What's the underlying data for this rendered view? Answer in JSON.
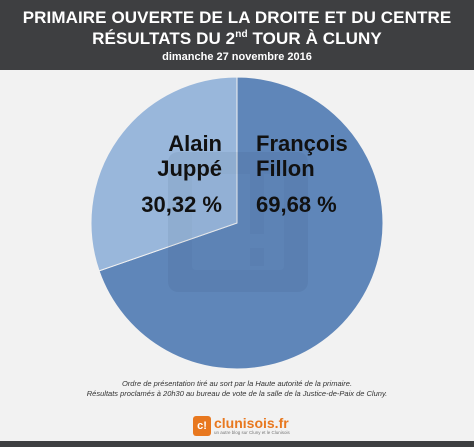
{
  "header": {
    "title_line1": "PRIMAIRE OUVERTE DE LA DROITE ET DU CENTRE",
    "title_line2_prefix": "RÉSULTATS DU 2",
    "title_line2_sup": "nd",
    "title_line2_suffix": " TOUR À CLUNY",
    "subtitle": "dimanche 27 novembre 2016"
  },
  "chart_data": {
    "type": "pie",
    "title": "PRIMAIRE OUVERTE DE LA DROITE ET DU CENTRE RÉSULTATS DU 2nd TOUR À CLUNY",
    "subtitle": "dimanche 27 novembre 2016",
    "start_angle_deg": 0,
    "direction": "clockwise",
    "slices": [
      {
        "first_name": "François",
        "last_name": "Fillon",
        "value": 69.68,
        "label": "69,68 %",
        "color": "#5f86b9"
      },
      {
        "first_name": "Alain",
        "last_name": "Juppé",
        "value": 30.32,
        "label": "30,32 %",
        "color": "#99b7db"
      }
    ]
  },
  "footnote": {
    "line1": "Ordre de présentation tiré au sort par la Haute autorité de la primaire.",
    "line2": "Résultats proclamés à 20h30 au bureau de vote de la salle de la Justice-de-Paix de Cluny."
  },
  "brand": {
    "logo_text": "c!",
    "name": "clunisois.fr",
    "tagline": "un autre blog sur Cluny et le Clunisois"
  },
  "colors": {
    "header_bg": "#3e3f41",
    "background": "#f2f2f2",
    "brand_orange": "#e8781f"
  }
}
